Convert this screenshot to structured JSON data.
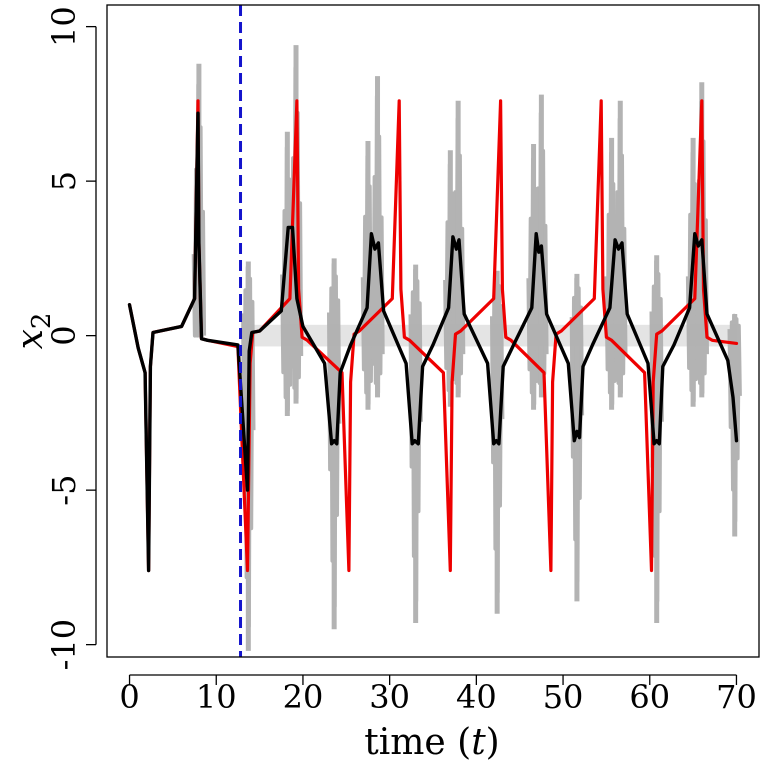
{
  "chart_data": {
    "type": "line",
    "xlabel": "time (t)",
    "ylabel": "x2",
    "xlim": [
      -2.6,
      72.6
    ],
    "ylim": [
      -10.4,
      10.7
    ],
    "xticks": [
      0,
      10,
      20,
      30,
      40,
      50,
      60,
      70
    ],
    "xtick_labels": [
      "0",
      "10",
      "20",
      "30",
      "40",
      "50",
      "60",
      "70"
    ],
    "yticks": [
      -10,
      -5,
      0,
      5,
      10
    ],
    "ytick_labels": [
      "-10",
      "-5",
      "0",
      "5",
      "10"
    ],
    "grid": false,
    "legend": "none",
    "vline": {
      "x": 12.8,
      "color": "#1414cc",
      "style": "dashed"
    },
    "series": [
      {
        "role": "ensemble-band",
        "color": "#b3b3b3",
        "spikes": [
          {
            "x": 8.0,
            "lo": 0.0,
            "hi": 8.8
          },
          {
            "x": 13.7,
            "lo": -10.2,
            "hi": 2.4
          },
          {
            "x": 18.2,
            "lo": -2.6,
            "hi": 6.6
          },
          {
            "x": 19.2,
            "lo": -2.2,
            "hi": 9.4
          },
          {
            "x": 23.6,
            "lo": -9.5,
            "hi": 2.5
          },
          {
            "x": 27.5,
            "lo": -2.4,
            "hi": 6.3
          },
          {
            "x": 28.6,
            "lo": -2.0,
            "hi": 8.4
          },
          {
            "x": 33.0,
            "lo": -9.3,
            "hi": 2.3
          },
          {
            "x": 37.0,
            "lo": -2.3,
            "hi": 6.0
          },
          {
            "x": 37.9,
            "lo": -2.0,
            "hi": 7.6
          },
          {
            "x": 42.4,
            "lo": -9.0,
            "hi": 2.1
          },
          {
            "x": 46.6,
            "lo": -2.4,
            "hi": 6.2
          },
          {
            "x": 47.5,
            "lo": -2.0,
            "hi": 7.8
          },
          {
            "x": 51.6,
            "lo": -8.6,
            "hi": 2.0
          },
          {
            "x": 55.6,
            "lo": -2.4,
            "hi": 6.4
          },
          {
            "x": 56.6,
            "lo": -2.0,
            "hi": 7.6
          },
          {
            "x": 60.8,
            "lo": -9.3,
            "hi": 2.6
          },
          {
            "x": 65.0,
            "lo": -2.3,
            "hi": 6.4
          },
          {
            "x": 66.0,
            "lo": -2.0,
            "hi": 8.2
          },
          {
            "x": 69.8,
            "lo": -6.5,
            "hi": 0.7
          }
        ]
      },
      {
        "role": "truth",
        "color": "#ee0000",
        "x": [
          0,
          1,
          1.8,
          2.2,
          2.4,
          2.7,
          3.5,
          6,
          7.5,
          7.9,
          8.0,
          8.3,
          9,
          12.5,
          13.6,
          13.9,
          14.2,
          15,
          18.5,
          19.3,
          19.5,
          19.9,
          20.5,
          24.5,
          25.3,
          25.5,
          25.9,
          26.5,
          30.3,
          31.1,
          31.3,
          31.7,
          32.3,
          36.2,
          37.0,
          37.2,
          37.6,
          38.2,
          42.0,
          42.8,
          43.0,
          43.4,
          44.0,
          47.8,
          48.6,
          48.8,
          49.2,
          49.8,
          53.6,
          54.4,
          54.6,
          55.0,
          55.6,
          59.4,
          60.2,
          60.4,
          60.8,
          61.4,
          65.2,
          66.0,
          66.2,
          66.6,
          67.2,
          70
        ],
        "y": [
          1.0,
          -0.4,
          -1.2,
          -7.6,
          -1.0,
          0.1,
          0.15,
          0.3,
          1.2,
          7.6,
          3.0,
          -0.1,
          -0.15,
          -0.35,
          -7.6,
          -0.9,
          0.1,
          0.15,
          1.2,
          7.6,
          1.5,
          -0.05,
          -0.15,
          -1.2,
          -7.6,
          -1.5,
          0.05,
          0.15,
          1.2,
          7.6,
          1.5,
          -0.05,
          -0.15,
          -1.2,
          -7.6,
          -1.5,
          0.05,
          0.15,
          1.2,
          7.6,
          1.5,
          -0.05,
          -0.15,
          -1.2,
          -7.6,
          -1.5,
          0.05,
          0.15,
          1.2,
          7.6,
          1.5,
          -0.05,
          -0.15,
          -1.2,
          -7.6,
          -1.5,
          0.05,
          0.15,
          1.2,
          7.6,
          1.5,
          -0.05,
          -0.15,
          -0.25
        ]
      },
      {
        "role": "estimate",
        "color": "#000000",
        "x": [
          0,
          1,
          1.8,
          2.2,
          2.4,
          2.7,
          3.5,
          6,
          7.5,
          7.9,
          8.0,
          8.3,
          9,
          12.5,
          13.6,
          13.8,
          14.1,
          15,
          17.5,
          18.3,
          18.8,
          19.3,
          20.0,
          22.5,
          23.3,
          23.6,
          23.9,
          24.3,
          25.5,
          27.4,
          27.9,
          28.3,
          28.7,
          29.3,
          31.9,
          32.6,
          32.9,
          33.3,
          33.8,
          35.0,
          36.8,
          37.3,
          37.7,
          38.0,
          38.6,
          41.3,
          42.0,
          42.3,
          42.6,
          43.1,
          44.3,
          46.4,
          46.9,
          47.2,
          47.5,
          48.1,
          50.6,
          51.3,
          51.6,
          51.9,
          52.3,
          53.4,
          55.4,
          56.0,
          56.4,
          56.8,
          57.4,
          59.8,
          60.5,
          60.8,
          61.1,
          61.5,
          62.8,
          64.6,
          65.2,
          65.6,
          66.0,
          66.6,
          69.0,
          69.6,
          70
        ],
        "y": [
          1.0,
          -0.4,
          -1.2,
          -7.6,
          -1.0,
          0.1,
          0.15,
          0.3,
          1.2,
          7.2,
          3.0,
          -0.1,
          -0.15,
          -0.3,
          -5.0,
          -0.5,
          0.1,
          0.15,
          0.8,
          3.5,
          3.5,
          1.2,
          0.3,
          -0.9,
          -3.5,
          -3.4,
          -3.5,
          -1.2,
          -0.3,
          0.9,
          3.3,
          2.8,
          3.0,
          0.8,
          -0.9,
          -3.5,
          -3.4,
          -3.5,
          -1.0,
          -0.3,
          0.9,
          3.2,
          2.8,
          3.1,
          0.7,
          -0.9,
          -3.5,
          -3.4,
          -3.5,
          -1.0,
          -0.3,
          0.9,
          3.3,
          2.7,
          2.9,
          0.7,
          -0.9,
          -3.4,
          -3.1,
          -3.3,
          -1.0,
          -0.3,
          0.9,
          3.1,
          2.8,
          3.0,
          0.7,
          -0.9,
          -3.5,
          -3.4,
          -3.5,
          -1.0,
          -0.3,
          0.9,
          3.3,
          2.9,
          3.1,
          0.7,
          -0.8,
          -2.0,
          -3.4
        ]
      }
    ]
  }
}
